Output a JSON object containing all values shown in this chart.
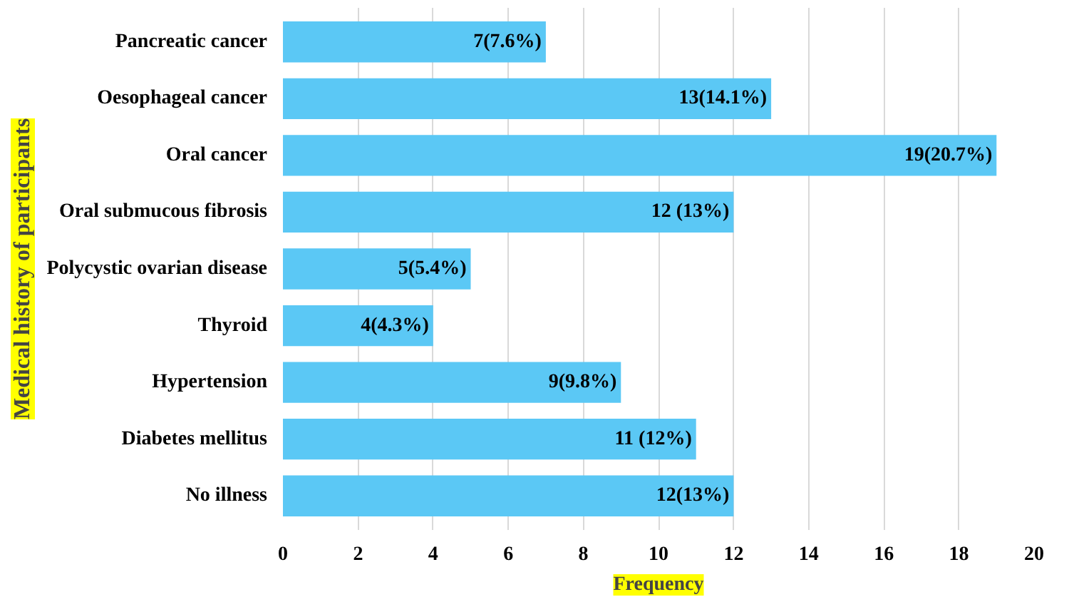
{
  "chart_data": {
    "type": "bar",
    "orientation": "horizontal",
    "xlabel": "Frequency",
    "ylabel": "Medical history of participants",
    "categories": [
      "Pancreatic cancer",
      "Oesophageal cancer",
      "Oral cancer",
      "Oral submucous fibrosis",
      "Polycystic ovarian disease",
      "Thyroid",
      "Hypertension",
      "Diabetes mellitus",
      "No illness"
    ],
    "values": [
      7,
      13,
      19,
      12,
      5,
      4,
      9,
      11,
      12
    ],
    "value_labels": [
      "7(7.6%)",
      "13(14.1%)",
      "19(20.7%)",
      "12 (13%)",
      "5(5.4%)",
      "4(4.3%)",
      "9(9.8%)",
      "11 (12%)",
      "12(13%)"
    ],
    "color": "#5bc8f5",
    "xlim": [
      0,
      20
    ],
    "xticks": [
      0,
      2,
      4,
      6,
      8,
      10,
      12,
      14,
      16,
      18,
      20
    ],
    "grid": "x"
  }
}
